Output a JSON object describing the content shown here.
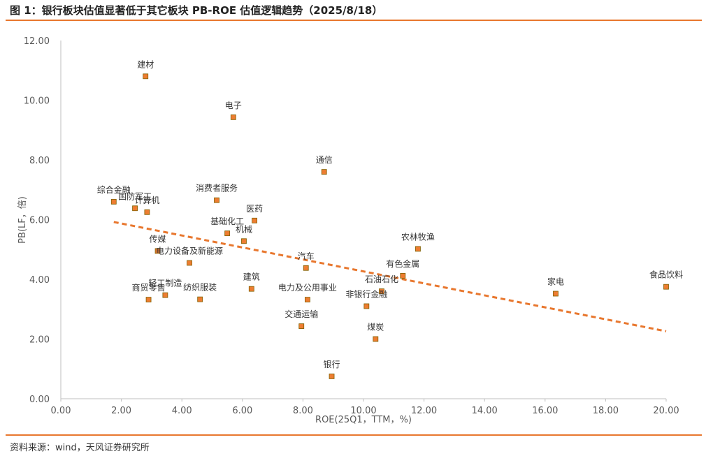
{
  "title": "图 1：银行板块估值显著低于其它板块 PB-ROE 估值逻辑趋势（2025/8/18）",
  "source": "资料来源：wind，天风证券研究所",
  "colors": {
    "accent": "#e8772e",
    "marker_fill": "#ed7d31",
    "marker_stroke": "#7f6000",
    "axis": "#bfbfbf",
    "tick_text": "#595959"
  },
  "chart_data": {
    "type": "scatter",
    "title": "",
    "xlabel": "ROE(25Q1，TTM，%)",
    "ylabel": "PB(LF，倍)",
    "xlim": [
      0,
      20
    ],
    "ylim": [
      0,
      12
    ],
    "x_ticks": [
      "0.00",
      "2.00",
      "4.00",
      "6.00",
      "8.00",
      "10.00",
      "12.00",
      "14.00",
      "16.00",
      "18.00",
      "20.00"
    ],
    "y_ticks": [
      "0.00",
      "2.00",
      "4.00",
      "6.00",
      "8.00",
      "10.00",
      "12.00"
    ],
    "grid": false,
    "trendline": {
      "style": "dashed",
      "x": [
        1.75,
        20.0
      ],
      "y": [
        5.92,
        2.26
      ]
    },
    "points": [
      {
        "label": "建材",
        "x": 2.8,
        "y": 10.8
      },
      {
        "label": "电子",
        "x": 5.7,
        "y": 9.43
      },
      {
        "label": "通信",
        "x": 8.7,
        "y": 7.6
      },
      {
        "label": "综合金融",
        "x": 1.75,
        "y": 6.6
      },
      {
        "label": "国防军工",
        "x": 2.45,
        "y": 6.38
      },
      {
        "label": "计算机",
        "x": 2.85,
        "y": 6.25
      },
      {
        "label": "消费者服务",
        "x": 5.15,
        "y": 6.65
      },
      {
        "label": "医药",
        "x": 6.4,
        "y": 5.97
      },
      {
        "label": "基础化工",
        "x": 5.5,
        "y": 5.54
      },
      {
        "label": "机械",
        "x": 6.05,
        "y": 5.28
      },
      {
        "label": "传媒",
        "x": 3.2,
        "y": 4.95
      },
      {
        "label": "电力设备及新能源",
        "x": 4.25,
        "y": 4.55
      },
      {
        "label": "农林牧渔",
        "x": 11.8,
        "y": 5.02
      },
      {
        "label": "汽车",
        "x": 8.1,
        "y": 4.38
      },
      {
        "label": "有色金属",
        "x": 11.3,
        "y": 4.12
      },
      {
        "label": "家电",
        "x": 16.35,
        "y": 3.52
      },
      {
        "label": "食品饮料",
        "x": 20.0,
        "y": 3.75
      },
      {
        "label": "建筑",
        "x": 6.3,
        "y": 3.68
      },
      {
        "label": "轻工制造",
        "x": 3.45,
        "y": 3.47
      },
      {
        "label": "商贸零售",
        "x": 2.9,
        "y": 3.32
      },
      {
        "label": "纺织服装",
        "x": 4.6,
        "y": 3.33
      },
      {
        "label": "电力及公用事业",
        "x": 8.15,
        "y": 3.32
      },
      {
        "label": "石油石化",
        "x": 10.6,
        "y": 3.6
      },
      {
        "label": "非银行金融",
        "x": 10.1,
        "y": 3.1
      },
      {
        "label": "交通运输",
        "x": 7.95,
        "y": 2.43
      },
      {
        "label": "煤炭",
        "x": 10.4,
        "y": 2.0
      },
      {
        "label": "银行",
        "x": 8.95,
        "y": 0.75
      }
    ]
  }
}
